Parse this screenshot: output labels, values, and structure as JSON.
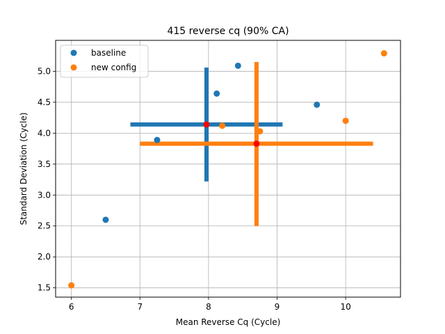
{
  "chart_data": {
    "type": "scatter",
    "title": "415 reverse cq (90% CA)",
    "xlabel": "Mean Reverse Cq (Cycle)",
    "ylabel": "Standard Deviation (Cycle)",
    "xlim": [
      5.77,
      10.8
    ],
    "ylim": [
      1.35,
      5.5
    ],
    "xticks": [
      6,
      7,
      8,
      9,
      10
    ],
    "xtick_labels": [
      "6",
      "7",
      "8",
      "9",
      "10"
    ],
    "yticks": [
      1.5,
      2.0,
      2.5,
      3.0,
      3.5,
      4.0,
      4.5,
      5.0
    ],
    "ytick_labels": [
      "1.5",
      "2.0",
      "2.5",
      "3.0",
      "3.5",
      "4.0",
      "4.5",
      "5.0"
    ],
    "grid": true,
    "legend_position": "upper-left",
    "series": [
      {
        "name": "baseline",
        "color": "#1f77b4",
        "points": [
          [
            6.5,
            2.6
          ],
          [
            7.25,
            3.89
          ],
          [
            8.12,
            4.64
          ],
          [
            8.43,
            5.09
          ],
          [
            9.58,
            4.46
          ]
        ],
        "center": [
          7.97,
          4.14
        ],
        "x_interval": [
          6.86,
          9.08
        ],
        "y_interval": [
          3.22,
          5.06
        ]
      },
      {
        "name": "new config",
        "color": "#ff7f0e",
        "points": [
          [
            6.0,
            1.54
          ],
          [
            8.2,
            4.12
          ],
          [
            8.75,
            4.03
          ],
          [
            10.0,
            4.2
          ],
          [
            10.56,
            5.29
          ]
        ],
        "center": [
          8.7,
          3.83
        ],
        "x_interval": [
          7.0,
          10.4
        ],
        "y_interval": [
          2.5,
          5.15
        ]
      }
    ],
    "center_marker_color": "#ff0000"
  }
}
